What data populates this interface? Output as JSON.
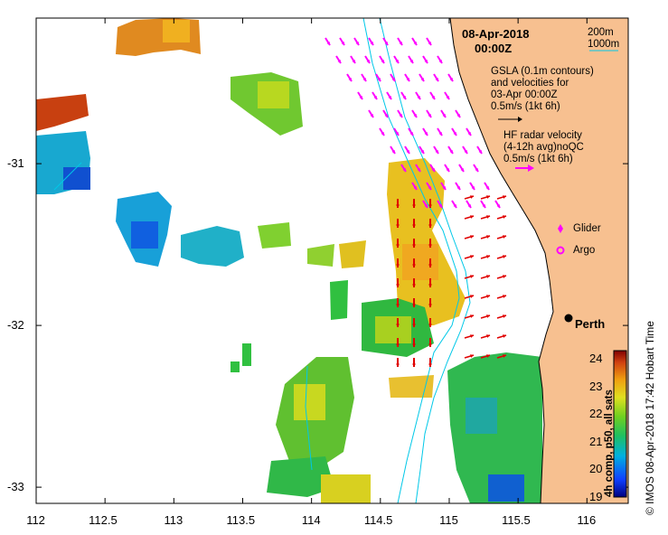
{
  "header": {
    "date": "08-Apr-2018",
    "time": "00:00Z"
  },
  "depth_legend": {
    "label_200": "200m",
    "label_1000": "1000m"
  },
  "gsla_note": {
    "line1": "GSLA (0.1m contours)",
    "line2": "and velocities for",
    "line3": "03-Apr 00:00Z",
    "line4": "0.5m/s (1kt 6h)"
  },
  "radar_note": {
    "line1": "HF radar velocity",
    "line2": "(4-12h avg)noQC",
    "line3": "0.5m/s (1kt 6h)"
  },
  "markers": {
    "glider": "Glider",
    "argo": "Argo"
  },
  "place": {
    "perth": "Perth"
  },
  "colorbar": {
    "title": "4h comp, p50, all sats",
    "ticks": [
      "19",
      "20",
      "21",
      "22",
      "23",
      "24"
    ],
    "range": [
      19,
      24.3
    ]
  },
  "credit": "© IMOS 08-Apr-2018 17:42 Hobart Time",
  "x_axis": {
    "ticks": [
      "112",
      "112.5",
      "113",
      "113.5",
      "114",
      "114.5",
      "115",
      "115.5",
      "116"
    ],
    "range": [
      112,
      116.3
    ]
  },
  "y_axis": {
    "ticks": [
      "-31",
      "-32",
      "-33"
    ],
    "range": [
      -33.1,
      -30.1
    ]
  },
  "colors": {
    "land": "#F7C090",
    "hf_radar_arrows": "#FF00FF",
    "gsla_arrows": "#E00000",
    "bathymetry": "#00C8E8"
  }
}
